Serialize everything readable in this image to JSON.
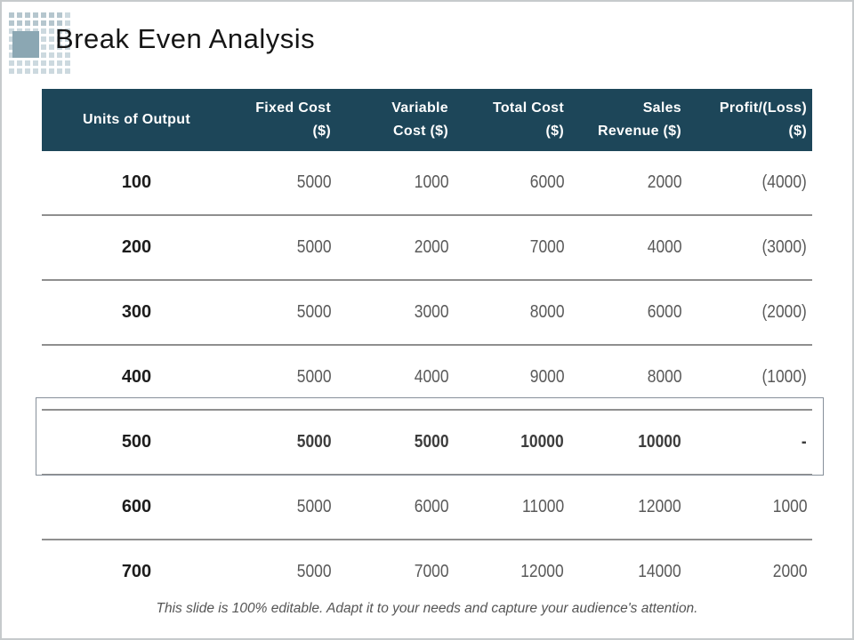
{
  "slide": {
    "title": "Break Even Analysis",
    "footer_note": "This slide is 100% editable. Adapt it to your needs and capture your audience's attention."
  },
  "table": {
    "columns": [
      {
        "line1": "Units of Output",
        "line2": ""
      },
      {
        "line1": "Fixed Cost",
        "line2": "($)"
      },
      {
        "line1": "Variable",
        "line2": "Cost ($)"
      },
      {
        "line1": "Total Cost",
        "line2": "($)"
      },
      {
        "line1": "Sales",
        "line2": "Revenue ($)"
      },
      {
        "line1": "Profit/(Loss)",
        "line2": "($)"
      }
    ],
    "rows": [
      {
        "units": "100",
        "fixed": "5000",
        "variable": "1000",
        "total": "6000",
        "sales": "2000",
        "profit": "(4000)"
      },
      {
        "units": "200",
        "fixed": "5000",
        "variable": "2000",
        "total": "7000",
        "sales": "4000",
        "profit": "(3000)"
      },
      {
        "units": "300",
        "fixed": "5000",
        "variable": "3000",
        "total": "8000",
        "sales": "6000",
        "profit": "(2000)"
      },
      {
        "units": "400",
        "fixed": "5000",
        "variable": "4000",
        "total": "9000",
        "sales": "8000",
        "profit": "(1000)"
      },
      {
        "units": "500",
        "fixed": "5000",
        "variable": "5000",
        "total": "10000",
        "sales": "10000",
        "profit": "-"
      },
      {
        "units": "600",
        "fixed": "5000",
        "variable": "6000",
        "total": "11000",
        "sales": "12000",
        "profit": "1000"
      },
      {
        "units": "700",
        "fixed": "5000",
        "variable": "7000",
        "total": "12000",
        "sales": "14000",
        "profit": "2000"
      }
    ],
    "highlight_row_units": "500"
  },
  "colors": {
    "header_bg": "#1d4659",
    "header_text": "#ffffff",
    "row_separator": "#8f8f8f",
    "value_text": "#595959",
    "units_text": "#1c1c1c",
    "highlight_border": "#87909a",
    "accent_square": "#8ba7b3",
    "pixel_grid": "#ccd9df"
  }
}
